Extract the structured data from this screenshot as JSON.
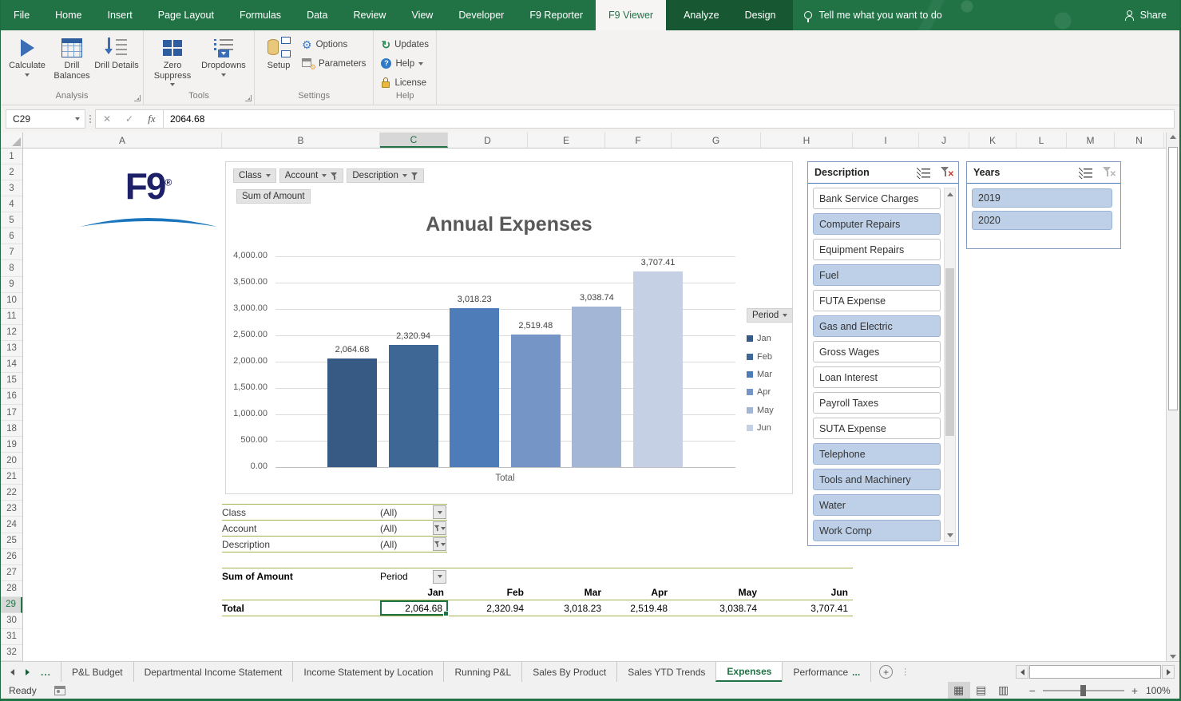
{
  "ribbon": {
    "tabs": [
      "File",
      "Home",
      "Insert",
      "Page Layout",
      "Formulas",
      "Data",
      "Review",
      "View",
      "Developer",
      "F9 Reporter",
      "F9 Viewer",
      "Analyze",
      "Design"
    ],
    "active_tab": "F9 Viewer",
    "contextual_tabs": [
      "Analyze",
      "Design"
    ],
    "tell_me": "Tell me what you want to do",
    "share_label": "Share",
    "groups": {
      "analysis": {
        "label": "Analysis",
        "calculate": "Calculate",
        "drill_balances": "Drill Balances",
        "drill_details": "Drill Details"
      },
      "tools": {
        "label": "Tools",
        "zero_suppress": "Zero Suppress",
        "dropdowns": "Dropdowns"
      },
      "settings": {
        "label": "Settings",
        "setup": "Setup",
        "options": "Options",
        "parameters": "Parameters"
      },
      "help": {
        "label": "Help",
        "updates": "Updates",
        "help": "Help",
        "license": "License"
      }
    }
  },
  "formula_bar": {
    "name_box": "C29",
    "value": "2064.68",
    "fx_label": "fx",
    "cancel_icon": "✕",
    "enter_icon": "✓"
  },
  "grid": {
    "columns": [
      "A",
      "B",
      "C",
      "D",
      "E",
      "F",
      "G",
      "H",
      "I",
      "J",
      "K",
      "L",
      "M",
      "N"
    ],
    "selected_column": "C",
    "first_row": 1,
    "last_row": 32,
    "selected_row": 29
  },
  "logo": {
    "text": "F9",
    "registered": "®"
  },
  "chart": {
    "field_buttons": [
      {
        "label": "Class",
        "filtered": false
      },
      {
        "label": "Account",
        "filtered": true
      },
      {
        "label": "Description",
        "filtered": true
      }
    ],
    "value_button": "Sum of Amount",
    "legend_button": "Period"
  },
  "chart_data": {
    "type": "bar",
    "title": "Annual Expenses",
    "categories": [
      "Jan",
      "Feb",
      "Mar",
      "Apr",
      "May",
      "Jun"
    ],
    "values": [
      2064.68,
      2320.94,
      3018.23,
      2519.48,
      3038.74,
      3707.41
    ],
    "value_labels": [
      "2,064.68",
      "2,320.94",
      "3,018.23",
      "2,519.48",
      "3,038.74",
      "3,707.41"
    ],
    "series_colors": [
      "#365A84",
      "#3F6795",
      "#4E7CB8",
      "#7595C6",
      "#A4B6D6",
      "#C6D0E4"
    ],
    "xlabel": "Total",
    "ylabel": "",
    "ylim": [
      0,
      4000
    ],
    "yticks": [
      "4,000.00",
      "3,500.00",
      "3,000.00",
      "2,500.00",
      "2,000.00",
      "1,500.00",
      "1,000.00",
      "500.00",
      "0.00"
    ],
    "grid": true,
    "legend_title": "Period",
    "legend_position": "right"
  },
  "filters": {
    "rows": [
      {
        "label": "Class",
        "value": "(All)",
        "filtered": false
      },
      {
        "label": "Account",
        "value": "(All)",
        "filtered": true
      },
      {
        "label": "Description",
        "value": "(All)",
        "filtered": true
      }
    ]
  },
  "pivot": {
    "header_left": "Sum of Amount",
    "header_field": "Period",
    "columns": [
      "Jan",
      "Feb",
      "Mar",
      "Apr",
      "May",
      "Jun"
    ],
    "row_label": "Total",
    "values": [
      "2,064.68",
      "2,320.94",
      "3,018.23",
      "2,519.48",
      "3,038.74",
      "3,707.41"
    ],
    "selected_col_index": 0,
    "selected_cell": "C29"
  },
  "slicers": {
    "description": {
      "title": "Description",
      "items": [
        {
          "label": "Bank Service Charges",
          "selected": false
        },
        {
          "label": "Computer Repairs",
          "selected": true
        },
        {
          "label": "Equipment Repairs",
          "selected": false
        },
        {
          "label": "Fuel",
          "selected": true
        },
        {
          "label": "FUTA Expense",
          "selected": false
        },
        {
          "label": "Gas and Electric",
          "selected": true
        },
        {
          "label": "Gross Wages",
          "selected": false
        },
        {
          "label": "Loan Interest",
          "selected": false
        },
        {
          "label": "Payroll Taxes",
          "selected": false
        },
        {
          "label": "SUTA Expense",
          "selected": false
        },
        {
          "label": "Telephone",
          "selected": true
        },
        {
          "label": "Tools and Machinery",
          "selected": true
        },
        {
          "label": "Water",
          "selected": true
        },
        {
          "label": "Work Comp",
          "selected": true
        }
      ]
    },
    "years": {
      "title": "Years",
      "items": [
        {
          "label": "2019",
          "selected": true
        },
        {
          "label": "2020",
          "selected": true
        }
      ]
    }
  },
  "sheet_tabs": {
    "overflow_marker": "...",
    "tabs": [
      {
        "label": "P&L Budget",
        "active": false,
        "truncated": false
      },
      {
        "label": "Departmental Income Statement",
        "active": false,
        "truncated": false
      },
      {
        "label": "Income Statement by Location",
        "active": false,
        "truncated": false
      },
      {
        "label": "Running P&L",
        "active": false,
        "truncated": false
      },
      {
        "label": "Sales By Product",
        "active": false,
        "truncated": false
      },
      {
        "label": "Sales YTD Trends",
        "active": false,
        "truncated": false
      },
      {
        "label": "Expenses",
        "active": true,
        "truncated": false
      },
      {
        "label": "Performance",
        "active": false,
        "truncated": true
      }
    ],
    "add_label": "+"
  },
  "status_bar": {
    "mode": "Ready",
    "zoom_level": "100%"
  },
  "colors": {
    "excel_green": "#217346",
    "contextual_tab_bg": "#175832",
    "slicer_selected_fill": "#BDD0E8",
    "pivot_line_olive": "#A4B04B",
    "logo_navy": "#1F2168",
    "logo_blue": "#1B75BC",
    "title_gray": "#595959"
  }
}
